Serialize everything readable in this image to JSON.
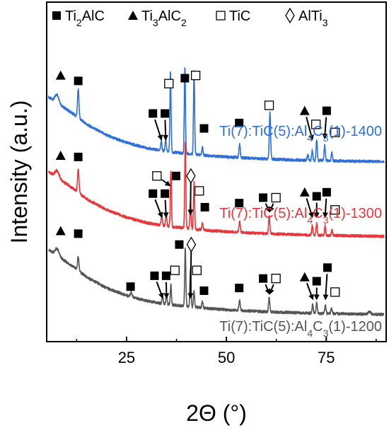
{
  "chart_data": {
    "type": "line",
    "xlabel": "2Θ (°)",
    "ylabel": "Intensity (a.u.)",
    "xlim": [
      5,
      90
    ],
    "xticks": [
      25,
      50,
      75
    ],
    "y_ticks_shown": false,
    "grid": false,
    "legend": {
      "placement": "top",
      "entries": [
        {
          "marker": "filled-square",
          "label_parts": [
            [
              "Ti",
              ""
            ],
            [
              "2",
              "sub"
            ],
            [
              "AlC",
              ""
            ]
          ]
        },
        {
          "marker": "filled-triangle",
          "label_parts": [
            [
              "Ti",
              ""
            ],
            [
              "3",
              "sub"
            ],
            [
              "AlC",
              ""
            ],
            [
              "2",
              "sub"
            ]
          ]
        },
        {
          "marker": "open-square",
          "label_parts": [
            [
              "TiC",
              ""
            ]
          ]
        },
        {
          "marker": "open-diamond",
          "label_parts": [
            [
              "AlTi",
              ""
            ],
            [
              "3",
              "sub"
            ]
          ]
        }
      ]
    },
    "series": [
      {
        "name": "Ti(7):TiC(5):Al4C3(1)-1400",
        "label_parts": [
          [
            "Ti(7):TiC(5):Al",
            ""
          ],
          [
            "4",
            "sub"
          ],
          [
            "C",
            ""
          ],
          [
            "3",
            "sub"
          ],
          [
            "(1)-1400",
            ""
          ]
        ],
        "color": "#2f6fdb",
        "offset": 260,
        "background": [
          [
            5.5,
            100
          ],
          [
            7,
            94
          ],
          [
            9,
            86
          ],
          [
            12,
            74
          ],
          [
            15,
            60
          ],
          [
            20,
            44
          ],
          [
            25,
            33
          ],
          [
            30,
            25
          ],
          [
            35,
            20
          ],
          [
            40,
            17
          ],
          [
            45,
            14
          ],
          [
            50,
            12
          ],
          [
            60,
            9
          ],
          [
            70,
            7
          ],
          [
            80,
            6
          ],
          [
            90,
            5
          ]
        ],
        "peaks": [
          {
            "x": 7.6,
            "h": 12,
            "w": 0.5
          },
          {
            "x": 12.9,
            "h": 42,
            "w": 0.18
          },
          {
            "x": 33.7,
            "h": 14,
            "w": 0.15
          },
          {
            "x": 34.8,
            "h": 18,
            "w": 0.15
          },
          {
            "x": 36.0,
            "h": 117,
            "w": 0.14
          },
          {
            "x": 39.6,
            "h": 126,
            "w": 0.14
          },
          {
            "x": 41.9,
            "h": 124,
            "w": 0.14
          },
          {
            "x": 44.0,
            "h": 12,
            "w": 0.15
          },
          {
            "x": 53.3,
            "h": 20,
            "w": 0.16
          },
          {
            "x": 60.9,
            "h": 68,
            "w": 0.16
          },
          {
            "x": 70.4,
            "h": 9,
            "w": 0.15
          },
          {
            "x": 71.5,
            "h": 16,
            "w": 0.15
          },
          {
            "x": 72.6,
            "h": 30,
            "w": 0.15
          },
          {
            "x": 74.6,
            "h": 22,
            "w": 0.15
          },
          {
            "x": 76.4,
            "h": 12,
            "w": 0.15
          }
        ],
        "annotations": [
          {
            "marker": "filled-triangle",
            "x": 8.5,
            "level": 132
          },
          {
            "marker": "filled-square",
            "x": 12.9,
            "level": 124
          },
          {
            "marker": "open-square",
            "x": 35.6,
            "level": 120
          },
          {
            "marker": "filled-square",
            "x": 39.6,
            "level": 128
          },
          {
            "marker": "open-square",
            "x": 42.3,
            "level": 132
          },
          {
            "marker": "filled-square",
            "x": 31.6,
            "level": 76,
            "arrow_to": [
              33.7,
              38
            ]
          },
          {
            "marker": "filled-square",
            "x": 34.6,
            "level": 76,
            "arrow_to": [
              34.8,
              38
            ]
          },
          {
            "marker": "filled-square",
            "x": 44.4,
            "level": 54
          },
          {
            "marker": "filled-square",
            "x": 53.2,
            "level": 62
          },
          {
            "marker": "open-square",
            "x": 60.7,
            "level": 88
          },
          {
            "marker": "filled-triangle",
            "x": 69.6,
            "level": 80,
            "arrow_to": [
              71.5,
              38
            ]
          },
          {
            "marker": "open-square",
            "x": 72.4,
            "level": 60
          },
          {
            "marker": "filled-square",
            "x": 75.1,
            "level": 80,
            "arrow_to": [
              74.6,
              40
            ]
          },
          {
            "marker": "open-square",
            "x": 77.2,
            "level": 48
          }
        ]
      },
      {
        "name": "Ti(7):TiC(5):Al4C3(1)-1300",
        "label_parts": [
          [
            "Ti(7):TiC(5):Al",
            ""
          ],
          [
            "4",
            "sub"
          ],
          [
            "C",
            ""
          ],
          [
            "3",
            "sub"
          ],
          [
            "(1)-1300",
            ""
          ]
        ],
        "color": "#e8363a",
        "offset": 150,
        "background": [
          [
            5.5,
            100
          ],
          [
            7,
            94
          ],
          [
            9,
            86
          ],
          [
            12,
            74
          ],
          [
            15,
            60
          ],
          [
            20,
            44
          ],
          [
            25,
            33
          ],
          [
            30,
            25
          ],
          [
            35,
            20
          ],
          [
            40,
            17
          ],
          [
            45,
            14
          ],
          [
            50,
            12
          ],
          [
            60,
            9
          ],
          [
            70,
            7
          ],
          [
            80,
            6
          ],
          [
            90,
            5
          ]
        ],
        "peaks": [
          {
            "x": 7.6,
            "h": 10,
            "w": 0.5
          },
          {
            "x": 12.9,
            "h": 34,
            "w": 0.18
          },
          {
            "x": 33.8,
            "h": 14,
            "w": 0.15
          },
          {
            "x": 34.9,
            "h": 18,
            "w": 0.15
          },
          {
            "x": 36.1,
            "h": 83,
            "w": 0.14
          },
          {
            "x": 39.7,
            "h": 126,
            "w": 0.14
          },
          {
            "x": 41.0,
            "h": 40,
            "w": 0.14
          },
          {
            "x": 41.9,
            "h": 70,
            "w": 0.14
          },
          {
            "x": 44.0,
            "h": 10,
            "w": 0.15
          },
          {
            "x": 53.3,
            "h": 16,
            "w": 0.16
          },
          {
            "x": 60.7,
            "h": 26,
            "w": 0.16
          },
          {
            "x": 71.5,
            "h": 14,
            "w": 0.15
          },
          {
            "x": 72.6,
            "h": 18,
            "w": 0.15
          },
          {
            "x": 74.7,
            "h": 14,
            "w": 0.15
          },
          {
            "x": 76.4,
            "h": 8,
            "w": 0.15
          }
        ],
        "annotations": [
          {
            "marker": "filled-triangle",
            "x": 8.5,
            "level": 124
          },
          {
            "marker": "filled-square",
            "x": 12.9,
            "level": 122
          },
          {
            "marker": "open-square",
            "x": 32.6,
            "level": 94,
            "arrow_to": [
              35.8,
              80
            ]
          },
          {
            "marker": "filled-square",
            "x": 37.4,
            "level": 94
          },
          {
            "marker": "open-diamond",
            "x": 41.1,
            "level": 94,
            "arrow_to": [
              41.0,
              38
            ]
          },
          {
            "marker": "open-square",
            "x": 43.2,
            "level": 72
          },
          {
            "marker": "filled-square",
            "x": 31.6,
            "level": 68,
            "arrow_to": [
              33.8,
              34
            ]
          },
          {
            "marker": "filled-square",
            "x": 34.6,
            "level": 68,
            "arrow_to": [
              34.9,
              34
            ]
          },
          {
            "marker": "filled-square",
            "x": 44.6,
            "level": 48
          },
          {
            "marker": "filled-square",
            "x": 53.2,
            "level": 54
          },
          {
            "marker": "filled-square",
            "x": 59.2,
            "level": 62,
            "arrow_to": [
              60.7,
              42
            ]
          },
          {
            "marker": "open-square",
            "x": 62.4,
            "level": 62,
            "arrow_to": [
              60.9,
              42
            ]
          },
          {
            "marker": "filled-triangle",
            "x": 69.6,
            "level": 70,
            "arrow_to": [
              71.5,
              34
            ]
          },
          {
            "marker": "filled-square",
            "x": 72.6,
            "level": 64,
            "arrow_to": [
              72.6,
              34
            ]
          },
          {
            "marker": "filled-square",
            "x": 75.1,
            "level": 70,
            "arrow_to": [
              74.7,
              34
            ]
          },
          {
            "marker": "open-square",
            "x": 77.2,
            "level": 44
          }
        ]
      },
      {
        "name": "Ti(7):TiC(5):Al4C3(1)-1200",
        "label_parts": [
          [
            "Ti(7):TiC(5):Al",
            ""
          ],
          [
            "4",
            "sub"
          ],
          [
            "C",
            ""
          ],
          [
            "3",
            "sub"
          ],
          [
            "(1)-1200",
            ""
          ]
        ],
        "color": "#555555",
        "offset": 35,
        "background": [
          [
            5.5,
            100
          ],
          [
            7,
            94
          ],
          [
            9,
            86
          ],
          [
            12,
            74
          ],
          [
            15,
            60
          ],
          [
            20,
            44
          ],
          [
            25,
            33
          ],
          [
            30,
            25
          ],
          [
            35,
            20
          ],
          [
            40,
            17
          ],
          [
            45,
            14
          ],
          [
            50,
            12
          ],
          [
            60,
            9
          ],
          [
            70,
            7
          ],
          [
            80,
            6
          ],
          [
            90,
            5
          ]
        ],
        "peaks": [
          {
            "x": 7.6,
            "h": 10,
            "w": 0.5
          },
          {
            "x": 12.9,
            "h": 20,
            "w": 0.18
          },
          {
            "x": 26.2,
            "h": 7,
            "w": 0.2
          },
          {
            "x": 34.0,
            "h": 11,
            "w": 0.15
          },
          {
            "x": 35.0,
            "h": 14,
            "w": 0.15
          },
          {
            "x": 36.1,
            "h": 30,
            "w": 0.14
          },
          {
            "x": 39.7,
            "h": 84,
            "w": 0.14
          },
          {
            "x": 41.0,
            "h": 56,
            "w": 0.14
          },
          {
            "x": 41.9,
            "h": 24,
            "w": 0.14
          },
          {
            "x": 44.0,
            "h": 9,
            "w": 0.15
          },
          {
            "x": 53.3,
            "h": 14,
            "w": 0.16
          },
          {
            "x": 60.7,
            "h": 20,
            "w": 0.16
          },
          {
            "x": 71.6,
            "h": 13,
            "w": 0.15
          },
          {
            "x": 72.6,
            "h": 16,
            "w": 0.15
          },
          {
            "x": 74.8,
            "h": 12,
            "w": 0.15
          },
          {
            "x": 76.3,
            "h": 8,
            "w": 0.15
          },
          {
            "x": 85.8,
            "h": 4,
            "w": 0.3
          }
        ],
        "annotations": [
          {
            "marker": "filled-triangle",
            "x": 8.5,
            "level": 128
          },
          {
            "marker": "filled-square",
            "x": 12.9,
            "level": 124
          },
          {
            "marker": "filled-square",
            "x": 26.0,
            "level": 46
          },
          {
            "marker": "filled-square",
            "x": 32.0,
            "level": 62,
            "arrow_to": [
              34.0,
              30
            ]
          },
          {
            "marker": "filled-square",
            "x": 34.9,
            "level": 62,
            "arrow_to": [
              35.0,
              30
            ]
          },
          {
            "marker": "open-square",
            "x": 37.1,
            "level": 70
          },
          {
            "marker": "filled-square",
            "x": 38.2,
            "level": 108
          },
          {
            "marker": "open-diamond",
            "x": 41.2,
            "level": 108,
            "arrow_to": [
              41.0,
              30
            ]
          },
          {
            "marker": "open-square",
            "x": 42.6,
            "level": 70
          },
          {
            "marker": "filled-square",
            "x": 44.4,
            "level": 40
          },
          {
            "marker": "filled-square",
            "x": 53.2,
            "level": 44
          },
          {
            "marker": "filled-square",
            "x": 59.2,
            "level": 58,
            "arrow_to": [
              60.7,
              36
            ]
          },
          {
            "marker": "open-square",
            "x": 62.4,
            "level": 58,
            "arrow_to": [
              60.9,
              36
            ]
          },
          {
            "marker": "filled-triangle",
            "x": 69.6,
            "level": 60,
            "arrow_to": [
              71.6,
              28
            ]
          },
          {
            "marker": "filled-square",
            "x": 72.6,
            "level": 54,
            "arrow_to": [
              72.6,
              28
            ]
          },
          {
            "marker": "filled-square",
            "x": 75.3,
            "level": 74,
            "arrow_to": [
              74.8,
              28
            ]
          },
          {
            "marker": "open-square",
            "x": 77.2,
            "level": 38
          }
        ]
      }
    ]
  }
}
